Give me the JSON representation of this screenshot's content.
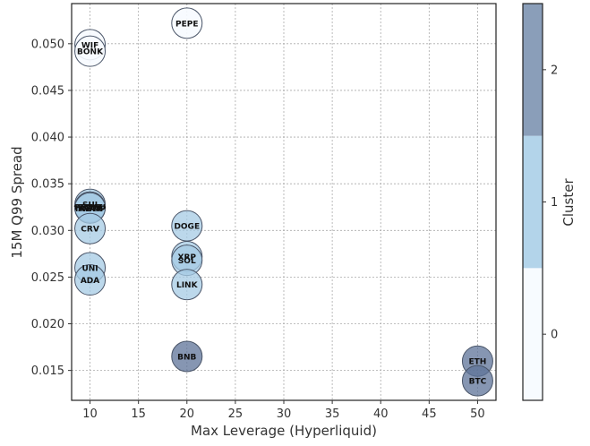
{
  "chart_data": {
    "type": "scatter",
    "xlabel": "Max Leverage (Hyperliquid)",
    "ylabel": "15M Q99 Spread",
    "xlim": [
      8.1,
      51.9
    ],
    "ylim": [
      0.0118,
      0.0543
    ],
    "xticks": [
      10,
      15,
      20,
      25,
      30,
      35,
      40,
      45,
      50
    ],
    "yticks": [
      0.015,
      0.02,
      0.025,
      0.03,
      0.035,
      0.04,
      0.045,
      0.05
    ],
    "grid": true,
    "colorbar": {
      "label": "Cluster",
      "ticks": [
        0,
        1,
        2
      ],
      "colors": [
        "#f7fbff",
        "#b3d4ea",
        "#8a9eb9"
      ],
      "range": [
        -0.5,
        2.5
      ]
    },
    "marker_colors": {
      "0": "#f7fbff",
      "1": "#a5cbe4",
      "2": "#5d7398"
    },
    "points": [
      {
        "label": "PEPE",
        "x": 20,
        "y": 0.0522,
        "cluster": 0
      },
      {
        "label": "WIF",
        "x": 10,
        "y": 0.0499,
        "cluster": 0
      },
      {
        "label": "BONK",
        "x": 10,
        "y": 0.0492,
        "cluster": 0
      },
      {
        "label": "SUI",
        "x": 10,
        "y": 0.0328,
        "cluster": 1
      },
      {
        "label": "PENGU",
        "x": 10,
        "y": 0.0325,
        "cluster": 1
      },
      {
        "label": "AVAX",
        "x": 10,
        "y": 0.0324,
        "cluster": 1
      },
      {
        "label": "PNUT",
        "x": 10,
        "y": 0.0325,
        "cluster": 1
      },
      {
        "label": "TRUMP",
        "x": 10,
        "y": 0.0324,
        "cluster": 1
      },
      {
        "label": "CRV",
        "x": 10,
        "y": 0.0302,
        "cluster": 1
      },
      {
        "label": "UNI",
        "x": 10,
        "y": 0.026,
        "cluster": 1
      },
      {
        "label": "ADA",
        "x": 10,
        "y": 0.0247,
        "cluster": 1
      },
      {
        "label": "DOGE",
        "x": 20,
        "y": 0.0305,
        "cluster": 1
      },
      {
        "label": "XRP",
        "x": 20,
        "y": 0.0272,
        "cluster": 1
      },
      {
        "label": "SOL",
        "x": 20,
        "y": 0.0268,
        "cluster": 1
      },
      {
        "label": "LINK",
        "x": 20,
        "y": 0.0242,
        "cluster": 1
      },
      {
        "label": "BNB",
        "x": 20,
        "y": 0.0165,
        "cluster": 2
      },
      {
        "label": "ETH",
        "x": 50,
        "y": 0.016,
        "cluster": 2
      },
      {
        "label": "BTC",
        "x": 50,
        "y": 0.0139,
        "cluster": 2
      }
    ]
  }
}
